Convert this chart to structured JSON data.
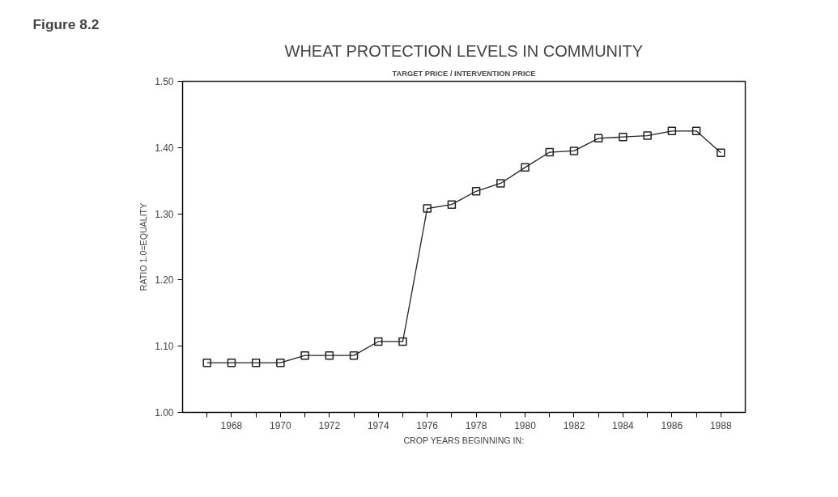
{
  "chart_data": {
    "type": "line",
    "title": "WHEAT PROTECTION LEVELS IN COMMUNITY",
    "subtitle": "TARGET PRICE / INTERVENTION PRICE",
    "xlabel": "CROP YEARS BEGINNING IN:",
    "ylabel": "RATIO 1.0=EQUALITY",
    "annotations": [
      "Figure 8.2"
    ],
    "x": [
      1967,
      1968,
      1969,
      1970,
      1971,
      1972,
      1973,
      1974,
      1975,
      1976,
      1977,
      1978,
      1979,
      1980,
      1981,
      1982,
      1983,
      1984,
      1985,
      1986,
      1987,
      1988
    ],
    "series": [
      {
        "color": "#222222",
        "values": [
          1.075,
          1.075,
          1.075,
          1.075,
          1.086,
          1.086,
          1.086,
          1.107,
          1.107,
          1.308,
          1.314,
          1.334,
          1.346,
          1.37,
          1.393,
          1.395,
          1.414,
          1.416,
          1.418,
          1.425,
          1.425,
          1.392
        ]
      }
    ],
    "xlim": [
      1966,
      1989
    ],
    "xticks": [
      {
        "value": 1967,
        "label": null
      },
      1968,
      {
        "value": 1969,
        "label": null
      },
      1970,
      {
        "value": 1971,
        "label": null
      },
      1972,
      {
        "value": 1973,
        "label": null
      },
      1974,
      {
        "value": 1975,
        "label": null
      },
      1976,
      {
        "value": 1977,
        "label": null
      },
      1978,
      {
        "value": 1979,
        "label": null
      },
      1980,
      {
        "value": 1981,
        "label": null
      },
      1982,
      {
        "value": 1983,
        "label": null
      },
      1984,
      {
        "value": 1985,
        "label": null
      },
      1986,
      {
        "value": 1987,
        "label": null
      },
      1988
    ],
    "ylim": [
      1.0,
      1.5
    ],
    "yticks": [
      {
        "value": 1.0,
        "label": "1.00"
      },
      {
        "value": 1.1,
        "label": "1.10"
      },
      {
        "value": 1.2,
        "label": "1.20"
      },
      {
        "value": 1.3,
        "label": "1.30"
      },
      {
        "value": 1.4,
        "label": "1.40"
      },
      {
        "value": 1.5,
        "label": "1.50"
      }
    ],
    "grid": false,
    "marker": "square",
    "line_style": "solid"
  }
}
